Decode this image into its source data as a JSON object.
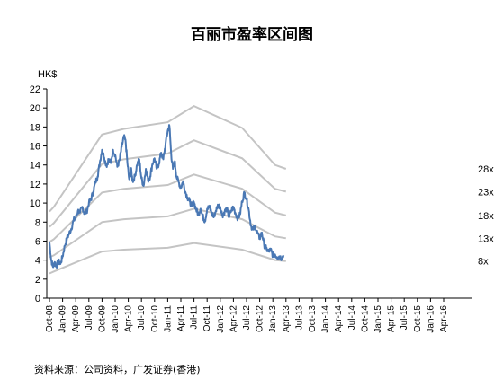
{
  "chart_data": {
    "type": "line",
    "title": "百丽市盈率区间图",
    "ylabel": "HK$",
    "ylim": [
      0,
      22
    ],
    "yticks": [
      0,
      2,
      4,
      6,
      8,
      10,
      12,
      14,
      16,
      18,
      20,
      22
    ],
    "xticks": [
      "Oct-08",
      "Jan-09",
      "Apr-09",
      "Jul-09",
      "Oct-09",
      "Jan-10",
      "Apr-10",
      "Jul-10",
      "Oct-10",
      "Jan-11",
      "Apr-11",
      "Jul-11",
      "Oct-11",
      "Jan-12",
      "Apr-12",
      "Jul-12",
      "Oct-12",
      "Jan-13",
      "Apr-13",
      "Jul-13",
      "Oct-13",
      "Jan-14",
      "Apr-14",
      "Jul-14",
      "Oct-14",
      "Jan-15",
      "Apr-15",
      "Jul-15",
      "Oct-15",
      "Jan-16",
      "Apr-16"
    ],
    "price_series": {
      "color": "#4a78b4",
      "points": [
        [
          0,
          5.9
        ],
        [
          0.4,
          4.0
        ],
        [
          0.8,
          3.3
        ],
        [
          1.2,
          3.8
        ],
        [
          1.6,
          3.3
        ],
        [
          2.0,
          3.9
        ],
        [
          2.5,
          3.6
        ],
        [
          3.0,
          4.4
        ],
        [
          3.5,
          5.5
        ],
        [
          4.0,
          6.3
        ],
        [
          4.5,
          6.8
        ],
        [
          5.0,
          7.3
        ],
        [
          5.5,
          8.2
        ],
        [
          6.0,
          8.4
        ],
        [
          6.5,
          9.2
        ],
        [
          7.0,
          9.0
        ],
        [
          7.5,
          9.6
        ],
        [
          8.0,
          8.9
        ],
        [
          8.5,
          9.1
        ],
        [
          9.0,
          10.0
        ],
        [
          9.5,
          10.4
        ],
        [
          10.0,
          11.2
        ],
        [
          10.5,
          12.2
        ],
        [
          11.0,
          12.8
        ],
        [
          11.5,
          14.3
        ],
        [
          12.0,
          15.6
        ],
        [
          12.5,
          14.8
        ],
        [
          13.0,
          13.9
        ],
        [
          13.5,
          14.6
        ],
        [
          14.0,
          14.2
        ],
        [
          14.5,
          15.6
        ],
        [
          15.0,
          15.1
        ],
        [
          15.5,
          13.8
        ],
        [
          16.0,
          14.5
        ],
        [
          16.5,
          15.9
        ],
        [
          17.0,
          17.0
        ],
        [
          17.4,
          16.4
        ],
        [
          17.8,
          14.2
        ],
        [
          18.2,
          12.5
        ],
        [
          18.6,
          13.6
        ],
        [
          19.0,
          12.3
        ],
        [
          19.5,
          12.8
        ],
        [
          20.0,
          14.0
        ],
        [
          20.5,
          14.6
        ],
        [
          21.0,
          12.6
        ],
        [
          21.5,
          11.8
        ],
        [
          22.0,
          13.6
        ],
        [
          22.5,
          12.4
        ],
        [
          23.0,
          12.8
        ],
        [
          23.5,
          14.1
        ],
        [
          24.0,
          14.7
        ],
        [
          24.5,
          13.6
        ],
        [
          25.0,
          14.2
        ],
        [
          25.5,
          15.3
        ],
        [
          26.0,
          14.6
        ],
        [
          26.5,
          16.2
        ],
        [
          27.0,
          17.6
        ],
        [
          27.4,
          18.1
        ],
        [
          27.8,
          15.1
        ],
        [
          28.2,
          13.6
        ],
        [
          28.6,
          14.4
        ],
        [
          29.0,
          12.8
        ],
        [
          29.5,
          12.2
        ],
        [
          30.0,
          11.6
        ],
        [
          30.5,
          12.3
        ],
        [
          31.0,
          11.2
        ],
        [
          31.5,
          10.6
        ],
        [
          32.0,
          10.2
        ],
        [
          32.5,
          9.7
        ],
        [
          33.0,
          10.1
        ],
        [
          33.5,
          9.3
        ],
        [
          34.0,
          8.8
        ],
        [
          34.5,
          9.4
        ],
        [
          35.0,
          8.6
        ],
        [
          35.5,
          8.1
        ],
        [
          36.0,
          9.4
        ],
        [
          36.5,
          9.6
        ],
        [
          37.0,
          9.0
        ],
        [
          37.5,
          8.5
        ],
        [
          38.0,
          9.2
        ],
        [
          38.5,
          9.8
        ],
        [
          39.0,
          9.6
        ],
        [
          39.5,
          8.7
        ],
        [
          40.0,
          9.1
        ],
        [
          40.5,
          9.4
        ],
        [
          41.0,
          8.5
        ],
        [
          41.5,
          9.2
        ],
        [
          42.0,
          9.6
        ],
        [
          42.5,
          8.9
        ],
        [
          43.0,
          8.4
        ],
        [
          43.5,
          8.8
        ],
        [
          44.0,
          10.2
        ],
        [
          44.5,
          11.1
        ],
        [
          45.0,
          10.4
        ],
        [
          45.5,
          9.3
        ],
        [
          46.0,
          7.6
        ],
        [
          46.5,
          7.2
        ],
        [
          47.0,
          7.6
        ],
        [
          47.5,
          6.8
        ],
        [
          48.0,
          6.3
        ],
        [
          48.5,
          6.9
        ],
        [
          49.0,
          5.6
        ],
        [
          49.5,
          5.2
        ],
        [
          50.0,
          4.9
        ],
        [
          50.5,
          5.1
        ],
        [
          51.0,
          4.5
        ],
        [
          51.5,
          4.6
        ],
        [
          52.0,
          4.3
        ],
        [
          52.5,
          4.4
        ],
        [
          53.0,
          4.2
        ],
        [
          53.5,
          4.5
        ]
      ]
    },
    "bands": [
      {
        "label": "28x",
        "points": [
          [
            0,
            9.1
          ],
          [
            1,
            9.6
          ],
          [
            12,
            17.2
          ],
          [
            17,
            17.8
          ],
          [
            27,
            18.5
          ],
          [
            33,
            20.2
          ],
          [
            44,
            17.9
          ],
          [
            51.5,
            14.0
          ],
          [
            54,
            13.6
          ]
        ]
      },
      {
        "label": "23x",
        "points": [
          [
            0,
            7.5
          ],
          [
            1,
            7.9
          ],
          [
            12,
            14.1
          ],
          [
            17,
            14.6
          ],
          [
            27,
            15.2
          ],
          [
            33,
            16.6
          ],
          [
            44,
            14.7
          ],
          [
            51.5,
            11.5
          ],
          [
            54,
            11.2
          ]
        ]
      },
      {
        "label": "18x",
        "points": [
          [
            0,
            5.9
          ],
          [
            1,
            6.2
          ],
          [
            12,
            11.1
          ],
          [
            17,
            11.5
          ],
          [
            27,
            11.9
          ],
          [
            33,
            13.0
          ],
          [
            44,
            11.5
          ],
          [
            51.5,
            9.0
          ],
          [
            54,
            8.7
          ]
        ]
      },
      {
        "label": "13x",
        "points": [
          [
            0,
            4.3
          ],
          [
            1,
            4.5
          ],
          [
            12,
            8.0
          ],
          [
            17,
            8.3
          ],
          [
            27,
            8.6
          ],
          [
            33,
            9.4
          ],
          [
            44,
            8.3
          ],
          [
            51.5,
            6.5
          ],
          [
            54,
            6.3
          ]
        ]
      },
      {
        "label": "8x",
        "points": [
          [
            0,
            2.6
          ],
          [
            1,
            2.8
          ],
          [
            12,
            4.9
          ],
          [
            17,
            5.1
          ],
          [
            27,
            5.3
          ],
          [
            33,
            5.8
          ],
          [
            44,
            5.1
          ],
          [
            51.5,
            4.0
          ],
          [
            54,
            3.9
          ]
        ]
      }
    ],
    "band_color": "#c4c4c4",
    "grid": false,
    "source": "资料来源：公司资料，广发证券(香港)"
  }
}
